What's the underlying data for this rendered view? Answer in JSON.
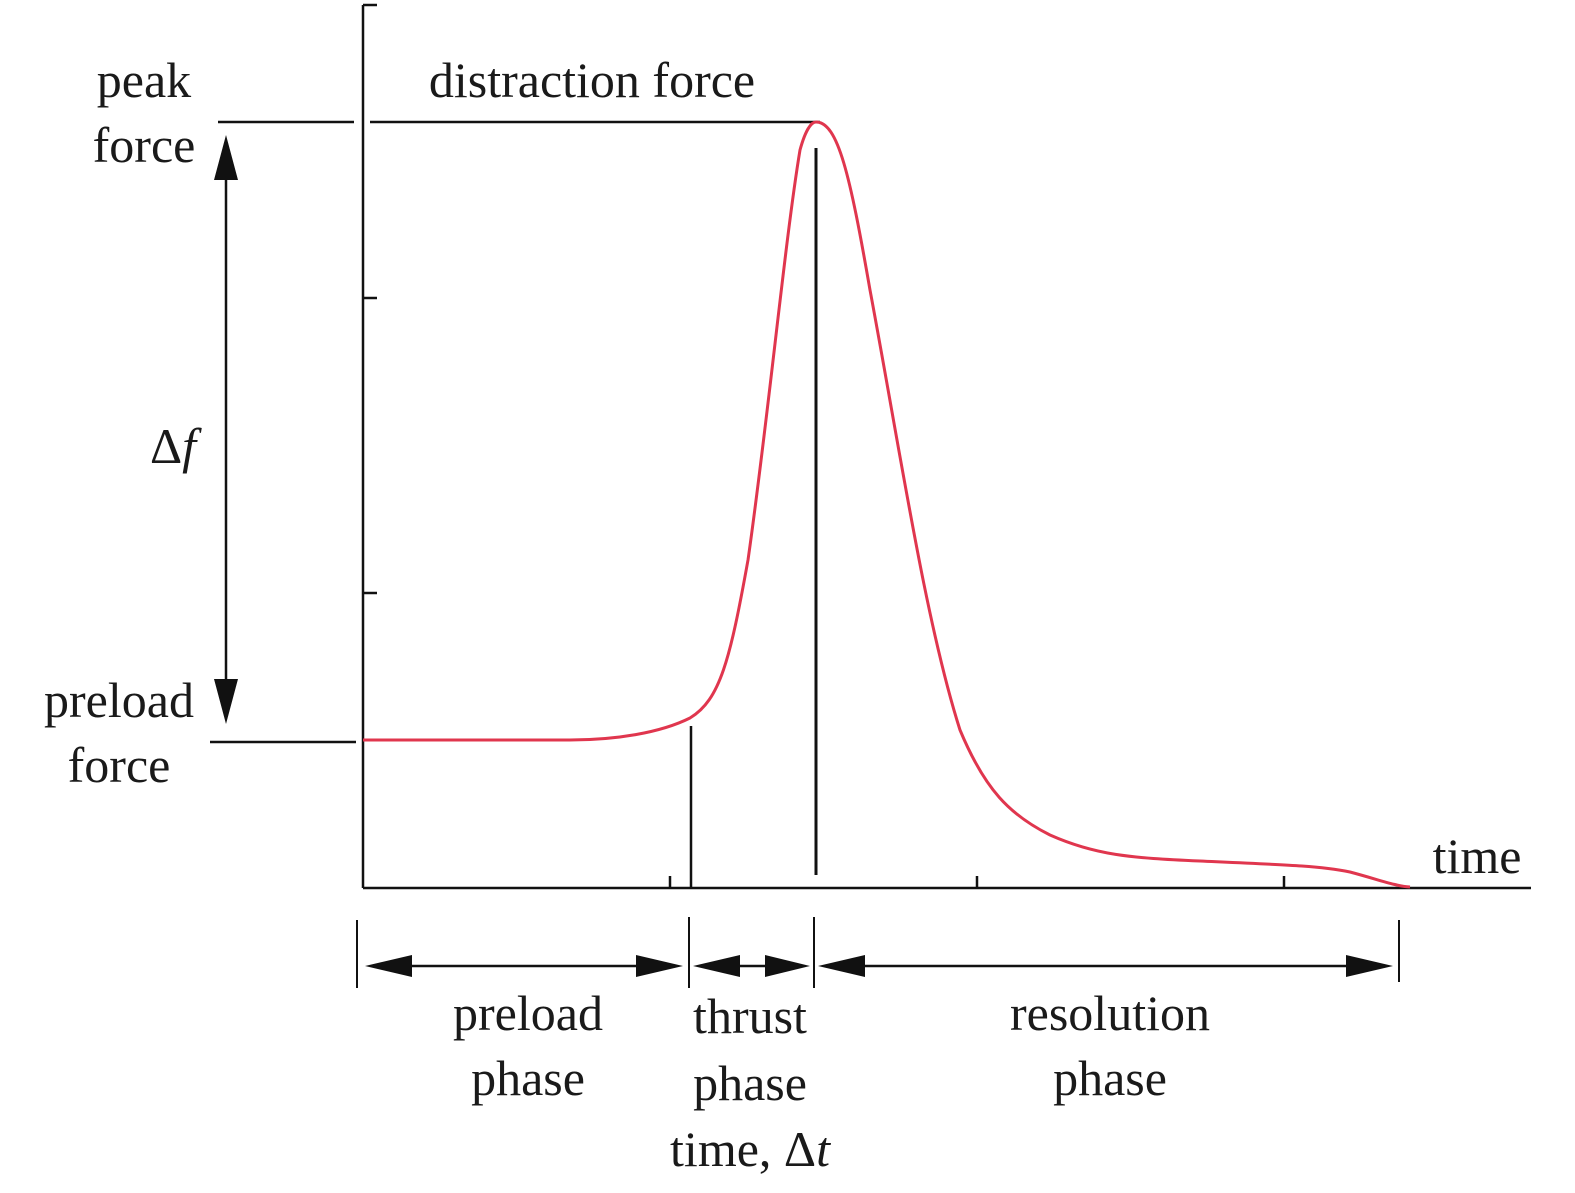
{
  "labels": {
    "peak_force_line1": "peak",
    "peak_force_line2": "force",
    "distraction_force": "distraction force",
    "delta_f_symbol": "Δ",
    "delta_f_var": "f",
    "preload_force_line1": "preload",
    "preload_force_line2": "force",
    "time_axis": "time",
    "preload_phase_line1": "preload",
    "preload_phase_line2": "phase",
    "thrust_phase_line1": "thrust",
    "thrust_phase_line2": "phase",
    "thrust_time_prefix": "time, Δ",
    "thrust_time_var": "t",
    "resolution_phase_line1": "resolution",
    "resolution_phase_line2": "phase"
  },
  "colors": {
    "curve": "#e0364e",
    "ink": "#111111"
  },
  "icons": [
    "double-arrow-icon"
  ]
}
